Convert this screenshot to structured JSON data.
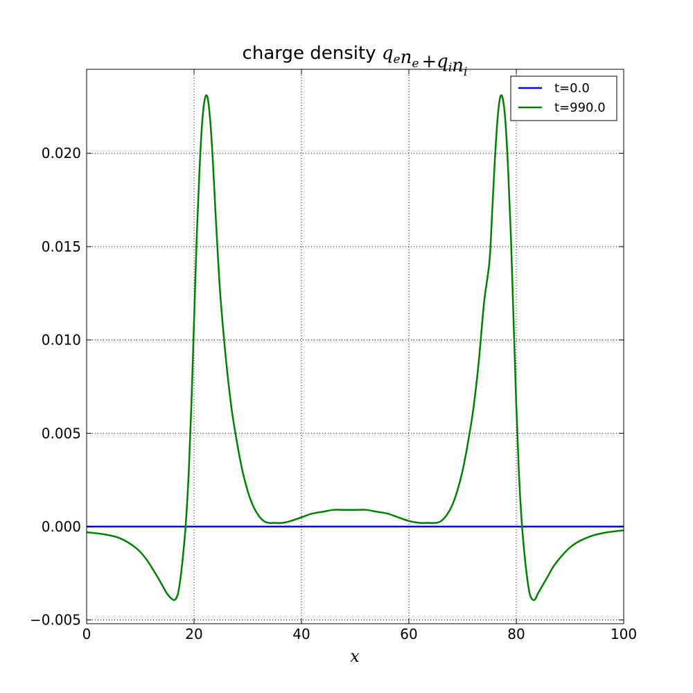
{
  "chart_data": {
    "type": "line",
    "title": {
      "text": "charge density ",
      "math": [
        "q",
        "e",
        "n",
        "e",
        "+",
        "q",
        "i",
        "n",
        "i"
      ]
    },
    "xlabel": "x",
    "ylabel": "",
    "xlim": [
      0,
      100
    ],
    "ylim": [
      -0.0052,
      0.0245
    ],
    "xticks": [
      0,
      20,
      40,
      60,
      80,
      100
    ],
    "xtick_labels": [
      "0",
      "20",
      "40",
      "60",
      "80",
      "100"
    ],
    "yticks": [
      -0.005,
      0.0,
      0.005,
      0.01,
      0.015,
      0.02
    ],
    "ytick_labels": [
      "−0.005",
      "0.000",
      "0.005",
      "0.010",
      "0.015",
      "0.020"
    ],
    "grid": true,
    "legend": "top-right",
    "series": [
      {
        "name": "t=0.0",
        "color": "#0000ff",
        "x": [
          0,
          100
        ],
        "y": [
          0.0,
          0.0
        ]
      },
      {
        "name": "t=990.0",
        "color": "#008000",
        "x": [
          0,
          3,
          6,
          9,
          11,
          13,
          14,
          15,
          16,
          16.5,
          17,
          17.5,
          18,
          18.5,
          19,
          19.5,
          20,
          20.5,
          21,
          21.5,
          22,
          22.5,
          23,
          23.5,
          24,
          24.5,
          25,
          26,
          27,
          28,
          29,
          30,
          31,
          32,
          33,
          34,
          35,
          36.5,
          38,
          40,
          42,
          44,
          46,
          48,
          50,
          52,
          54,
          56,
          58,
          60,
          62,
          63.5,
          65,
          66,
          67,
          68,
          69,
          70,
          71,
          72,
          73,
          74,
          75,
          75.5,
          76,
          76.5,
          77,
          77.5,
          78,
          78.5,
          79,
          79.5,
          80,
          80.5,
          81,
          81.5,
          82,
          82.5,
          83,
          83.5,
          84,
          85,
          86,
          87,
          89,
          91,
          94,
          97,
          100
        ],
        "y": [
          -0.0003,
          -0.0004,
          -0.0006,
          -0.0011,
          -0.0017,
          -0.0026,
          -0.0031,
          -0.0036,
          -0.0039,
          -0.0039,
          -0.0036,
          -0.0027,
          -0.0014,
          0.0003,
          0.0028,
          0.0065,
          0.011,
          0.0155,
          0.019,
          0.0216,
          0.0229,
          0.023,
          0.0218,
          0.0196,
          0.0168,
          0.0142,
          0.012,
          0.0088,
          0.0063,
          0.0045,
          0.003,
          0.0019,
          0.0011,
          0.0006,
          0.0003,
          0.0002,
          0.0002,
          0.0002,
          0.0003,
          0.0005,
          0.0007,
          0.0008,
          0.0009,
          0.0009,
          0.0009,
          0.0009,
          0.0008,
          0.0007,
          0.0005,
          0.0003,
          0.0002,
          0.0002,
          0.0002,
          0.0003,
          0.0006,
          0.0011,
          0.0019,
          0.003,
          0.0045,
          0.0063,
          0.0088,
          0.012,
          0.0142,
          0.0168,
          0.0196,
          0.0218,
          0.023,
          0.0229,
          0.0216,
          0.019,
          0.0155,
          0.011,
          0.0065,
          0.0028,
          0.0003,
          -0.0014,
          -0.0027,
          -0.0036,
          -0.0039,
          -0.0039,
          -0.0036,
          -0.0031,
          -0.0026,
          -0.0021,
          -0.0014,
          -0.0009,
          -0.0005,
          -0.0003,
          -0.0002
        ]
      }
    ]
  }
}
